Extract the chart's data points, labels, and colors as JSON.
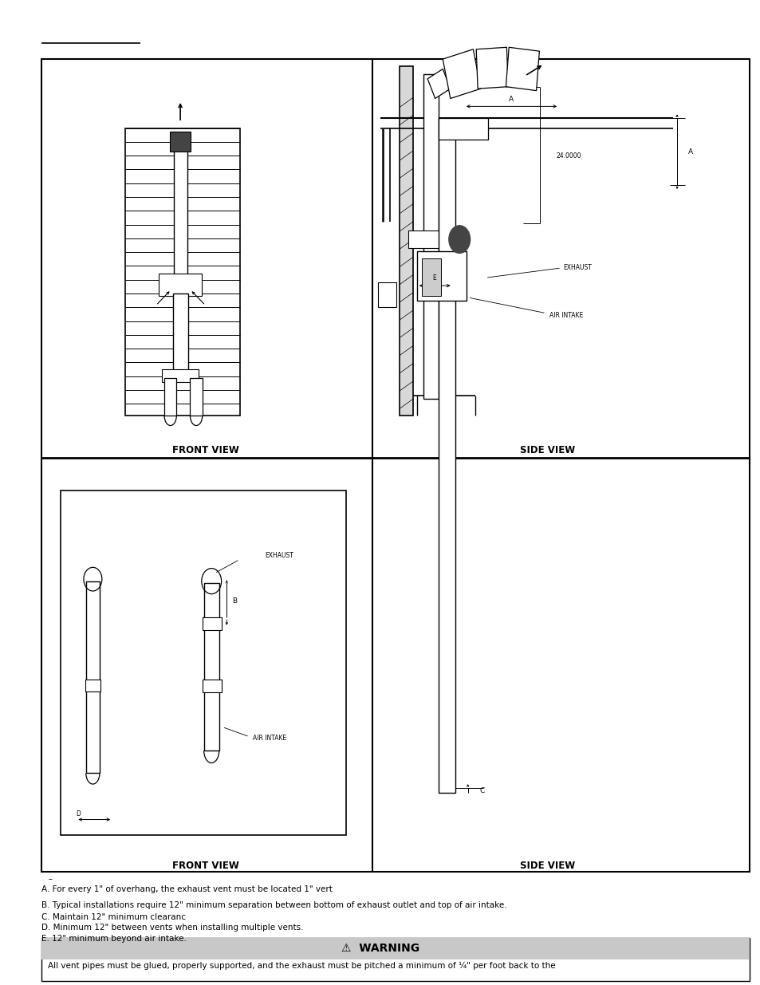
{
  "page_bg": "#ffffff",
  "front_view_label_1": "FRONT VIEW",
  "side_view_label_1": "SIDE VIEW",
  "front_view_label_2": "FRONT VIEW",
  "side_view_label_2": "SIDE VIEW",
  "note_a": "A. For every 1\" of overhang, the exhaust vent must be located 1\" vert",
  "note_b": "B. Typical installations require 12\" minimum separation between bottom of exhaust outlet and top of air intake.",
  "note_c": "C. Maintain 12\" minimum clearanc",
  "note_d": "D. Minimum 12\" between vents when installing multiple vents.",
  "note_e": "E. 12\" minimum beyond air intake.",
  "warning_title": "⚠  WARNING",
  "warning_text": "All vent pipes must be glued, properly supported, and the exhaust must be pitched a minimum of ¼\" per foot back to the",
  "warning_bg": "#c8c8c8",
  "dash_label": "–",
  "label_24000": "24.0000",
  "label_A_top": "A",
  "label_A_side": "A",
  "label_B": "B",
  "label_C": "C",
  "label_D": "D",
  "label_E": "E",
  "label_exhaust_upper": "EXHAUST",
  "label_air_intake_upper": "AIR INTAKE",
  "label_exhaust_lower": "EXHAUST",
  "label_air_intake_lower": "AIR INTAKE"
}
